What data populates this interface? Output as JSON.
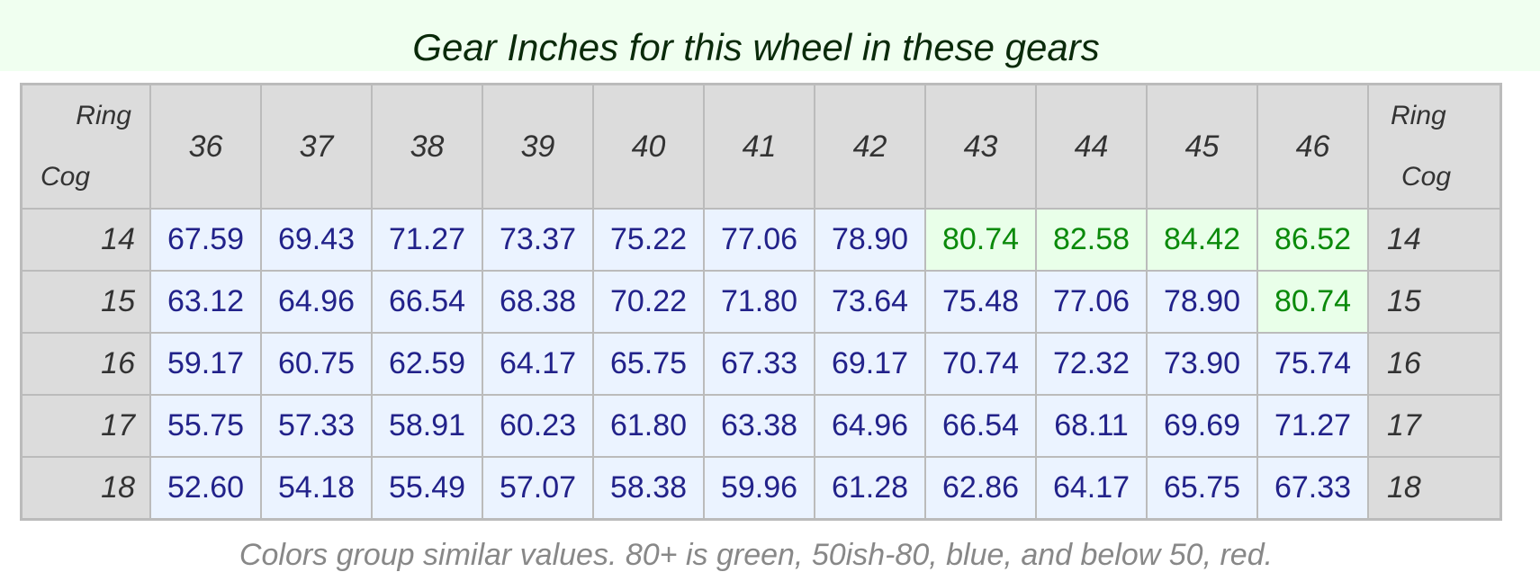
{
  "title": "Gear Inches for this wheel in these gears",
  "corner": {
    "ring": "Ring",
    "cog": "Cog"
  },
  "rings": [
    "36",
    "37",
    "38",
    "39",
    "40",
    "41",
    "42",
    "43",
    "44",
    "45",
    "46"
  ],
  "rows": [
    {
      "cog": "14",
      "values": [
        "67.59",
        "69.43",
        "71.27",
        "73.37",
        "75.22",
        "77.06",
        "78.90",
        "80.74",
        "82.58",
        "84.42",
        "86.52"
      ]
    },
    {
      "cog": "15",
      "values": [
        "63.12",
        "64.96",
        "66.54",
        "68.38",
        "70.22",
        "71.80",
        "73.64",
        "75.48",
        "77.06",
        "78.90",
        "80.74"
      ]
    },
    {
      "cog": "16",
      "values": [
        "59.17",
        "60.75",
        "62.59",
        "64.17",
        "65.75",
        "67.33",
        "69.17",
        "70.74",
        "72.32",
        "73.90",
        "75.74"
      ]
    },
    {
      "cog": "17",
      "values": [
        "55.75",
        "57.33",
        "58.91",
        "60.23",
        "61.80",
        "63.38",
        "64.96",
        "66.54",
        "68.11",
        "69.69",
        "71.27"
      ]
    },
    {
      "cog": "18",
      "values": [
        "52.60",
        "54.18",
        "55.49",
        "57.07",
        "58.38",
        "59.96",
        "61.28",
        "62.86",
        "64.17",
        "65.75",
        "67.33"
      ]
    }
  ],
  "colors": {
    "green": "#0a8a0a",
    "blue": "#22228a",
    "green_bg": "#e9ffe9",
    "blue_bg": "#ebf3ff"
  },
  "caption": "Colors group similar values. 80+ is green, 50ish-80, blue, and below 50, red."
}
